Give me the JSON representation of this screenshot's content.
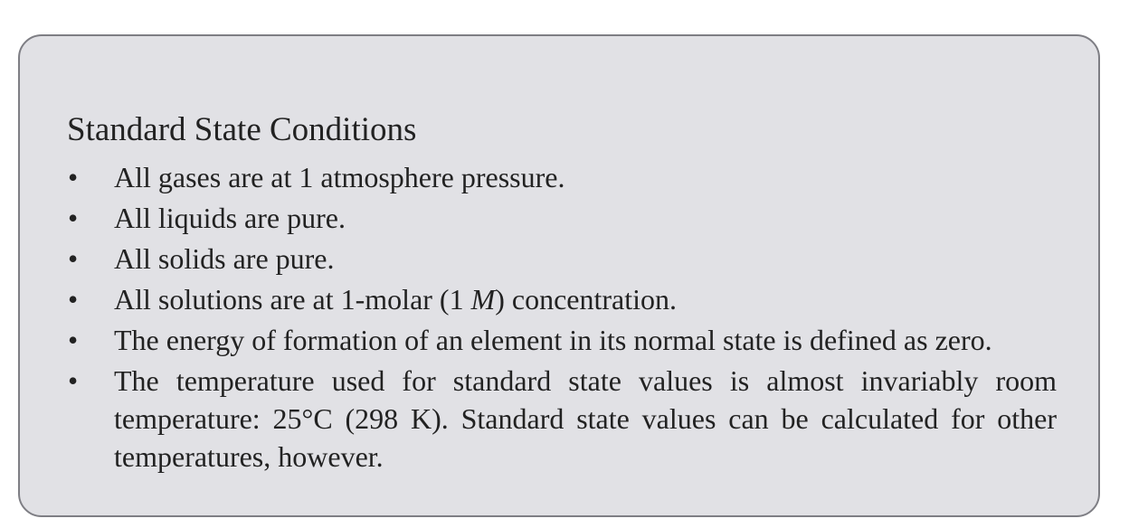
{
  "panel": {
    "title": "Standard State Conditions",
    "bullet_glyph": "•",
    "items": [
      {
        "text": "All gases are at 1 atmosphere pressure."
      },
      {
        "text": "All liquids are pure."
      },
      {
        "text": "All solids are pure."
      },
      {
        "before": "All solutions are at 1-molar (1 ",
        "emphasis": "M",
        "after": ") concentration."
      },
      {
        "text": "The energy of formation of an element in its normal state is defined as zero."
      },
      {
        "text": "The temperature used for standard state values is almost invariably room temperature: 25°C (298 K). Standard state values can be calculated for other temperatures, however."
      }
    ]
  },
  "colors": {
    "panel_background": "#e1e1e5",
    "panel_border": "#7e7e84",
    "text": "#222222"
  }
}
